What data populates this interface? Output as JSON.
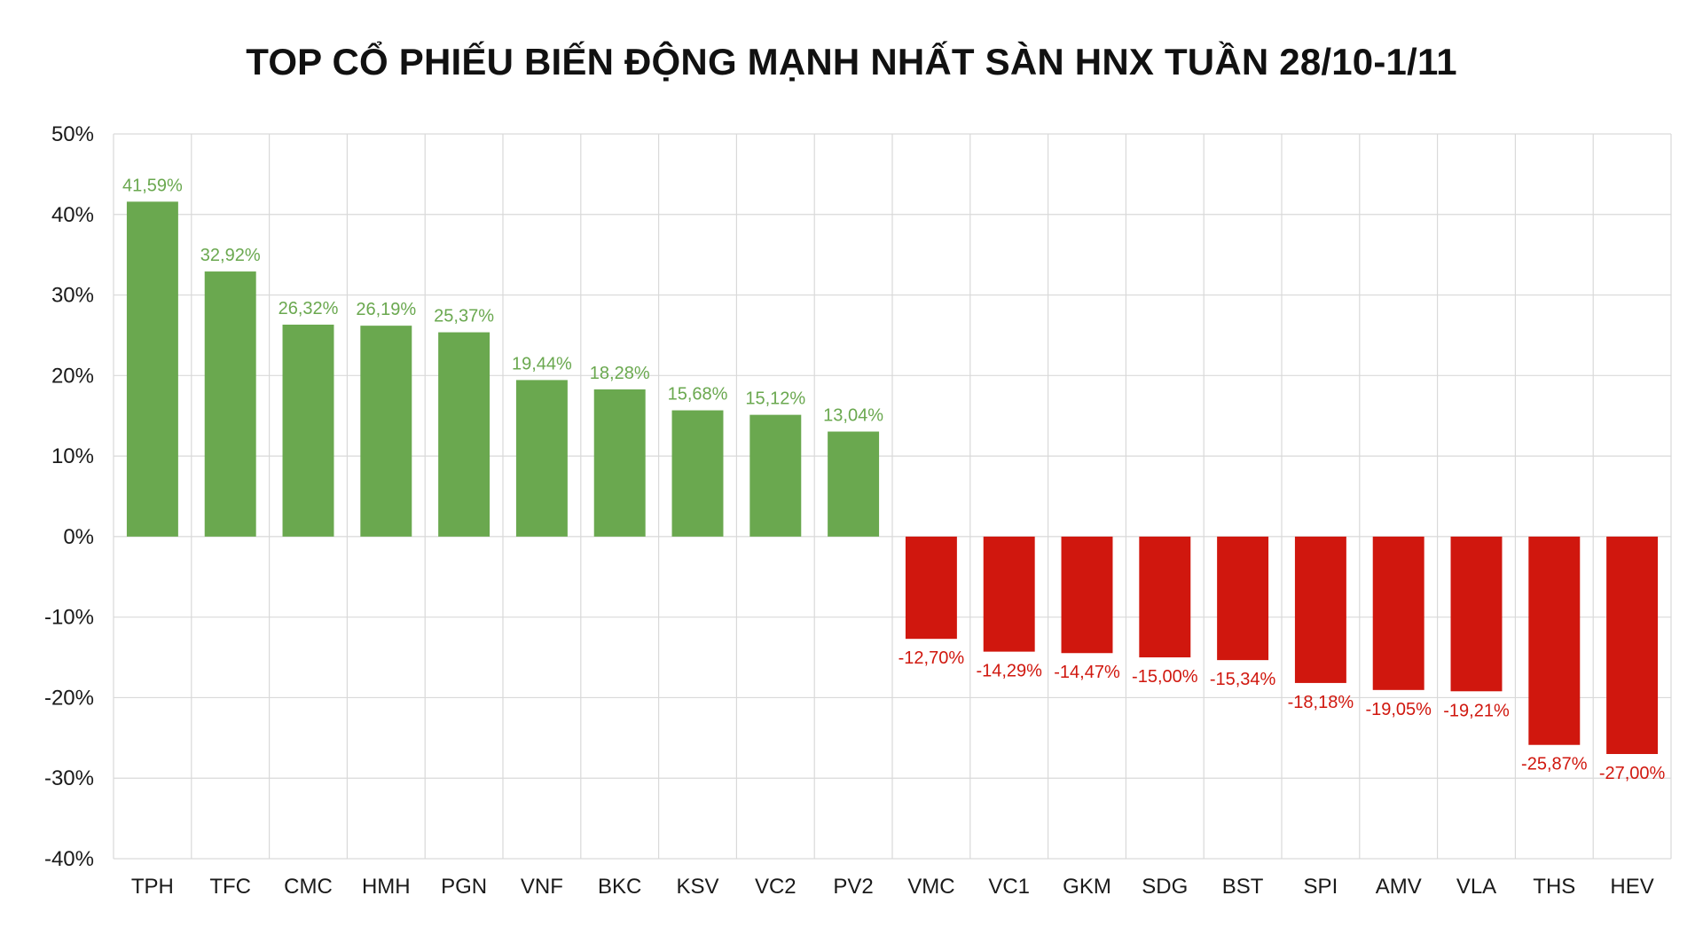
{
  "chart_data": {
    "type": "bar",
    "title": "TOP CỔ PHIẾU BIẾN ĐỘNG MẠNH NHẤT SÀN HNX TUẦN 28/10-1/11",
    "xlabel": "",
    "ylabel": "",
    "ylim": [
      -40,
      50
    ],
    "yticks": [
      50,
      40,
      30,
      20,
      10,
      0,
      -10,
      -20,
      -30,
      -40
    ],
    "ytick_labels": [
      "50%",
      "40%",
      "30%",
      "20%",
      "10%",
      "0%",
      "-10%",
      "-20%",
      "-30%",
      "-40%"
    ],
    "categories": [
      "TPH",
      "TFC",
      "CMC",
      "HMH",
      "PGN",
      "VNF",
      "BKC",
      "KSV",
      "VC2",
      "PV2",
      "VMC",
      "VC1",
      "GKM",
      "SDG",
      "BST",
      "SPI",
      "AMV",
      "VLA",
      "THS",
      "HEV"
    ],
    "values": [
      41.59,
      32.92,
      26.32,
      26.19,
      25.37,
      19.44,
      18.28,
      15.68,
      15.12,
      13.04,
      -12.7,
      -14.29,
      -14.47,
      -15.0,
      -15.34,
      -18.18,
      -19.05,
      -19.21,
      -25.87,
      -27.0
    ],
    "value_labels": [
      "41,59%",
      "32,92%",
      "26,32%",
      "26,19%",
      "25,37%",
      "19,44%",
      "18,28%",
      "15,68%",
      "15,12%",
      "13,04%",
      "-12,70%",
      "-14,29%",
      "-14,47%",
      "-15,00%",
      "-15,34%",
      "-18,18%",
      "-19,05%",
      "-19,21%",
      "-25,87%",
      "-27,00%"
    ],
    "grid": "both",
    "legend": "none",
    "colors": {
      "positive": "#6aa84f",
      "negative": "#d0170e",
      "positive_label": "#6aa84f",
      "negative_label": "#d0170e",
      "grid": "#d9d9d9",
      "text": "#1a1a1a"
    }
  }
}
